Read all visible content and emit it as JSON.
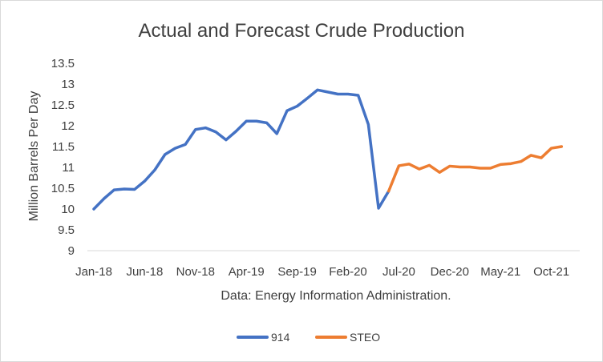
{
  "chart_data": {
    "type": "line",
    "title": "Actual and Forecast Crude Production",
    "xlabel": "Data: Energy Information Administration.",
    "ylabel": "Million Barrels Per Day",
    "ylim": [
      9,
      13.5
    ],
    "yticks": [
      9,
      9.5,
      10,
      10.5,
      11,
      11.5,
      12,
      12.5,
      13,
      13.5
    ],
    "ytick_labels": [
      "9",
      "9.5",
      "10",
      "10.5",
      "11",
      "11.5",
      "12",
      "12.5",
      "13",
      "13.5"
    ],
    "grid": false,
    "legend_position": "bottom",
    "categories": [
      "Jan-18",
      "Feb-18",
      "Mar-18",
      "Apr-18",
      "May-18",
      "Jun-18",
      "Jul-18",
      "Aug-18",
      "Sep-18",
      "Oct-18",
      "Nov-18",
      "Dec-18",
      "Jan-19",
      "Feb-19",
      "Mar-19",
      "Apr-19",
      "May-19",
      "Jun-19",
      "Jul-19",
      "Aug-19",
      "Sep-19",
      "Oct-19",
      "Nov-19",
      "Dec-19",
      "Jan-20",
      "Feb-20",
      "Mar-20",
      "Apr-20",
      "May-20",
      "Jun-20",
      "Jul-20",
      "Aug-20",
      "Sep-20",
      "Oct-20",
      "Nov-20",
      "Dec-20",
      "Jan-21",
      "Feb-21",
      "Mar-21",
      "Apr-21",
      "May-21",
      "Jun-21",
      "Jul-21",
      "Aug-21",
      "Sep-21",
      "Oct-21",
      "Nov-21",
      "Dec-21"
    ],
    "x_tick_labels": [
      {
        "index": 0,
        "label": "Jan-18"
      },
      {
        "index": 5,
        "label": "Jun-18"
      },
      {
        "index": 10,
        "label": "Nov-18"
      },
      {
        "index": 15,
        "label": "Apr-19"
      },
      {
        "index": 20,
        "label": "Sep-19"
      },
      {
        "index": 25,
        "label": "Feb-20"
      },
      {
        "index": 30,
        "label": "Jul-20"
      },
      {
        "index": 35,
        "label": "Dec-20"
      },
      {
        "index": 40,
        "label": "May-21"
      },
      {
        "index": 45,
        "label": "Oct-21"
      }
    ],
    "series": [
      {
        "name": "914",
        "color": "#4472c4",
        "values": [
          10.0,
          10.25,
          10.46,
          10.48,
          10.47,
          10.67,
          10.94,
          11.31,
          11.46,
          11.55,
          11.91,
          11.95,
          11.85,
          11.66,
          11.87,
          12.11,
          12.11,
          12.07,
          11.81,
          12.36,
          12.47,
          12.66,
          12.86,
          12.81,
          12.76,
          12.76,
          12.73,
          12.03,
          10.02,
          10.43,
          null,
          null,
          null,
          null,
          null,
          null,
          null,
          null,
          null,
          null,
          null,
          null,
          null,
          null,
          null,
          null,
          null,
          null
        ]
      },
      {
        "name": "STEO",
        "color": "#ed7d31",
        "values": [
          null,
          null,
          null,
          null,
          null,
          null,
          null,
          null,
          null,
          null,
          null,
          null,
          null,
          null,
          null,
          null,
          null,
          null,
          null,
          null,
          null,
          null,
          null,
          null,
          null,
          null,
          null,
          null,
          null,
          10.43,
          11.04,
          11.08,
          10.96,
          11.05,
          10.88,
          11.03,
          11.01,
          11.01,
          10.98,
          10.98,
          11.07,
          11.09,
          11.14,
          11.29,
          11.23,
          11.46,
          11.5,
          null
        ]
      }
    ]
  }
}
